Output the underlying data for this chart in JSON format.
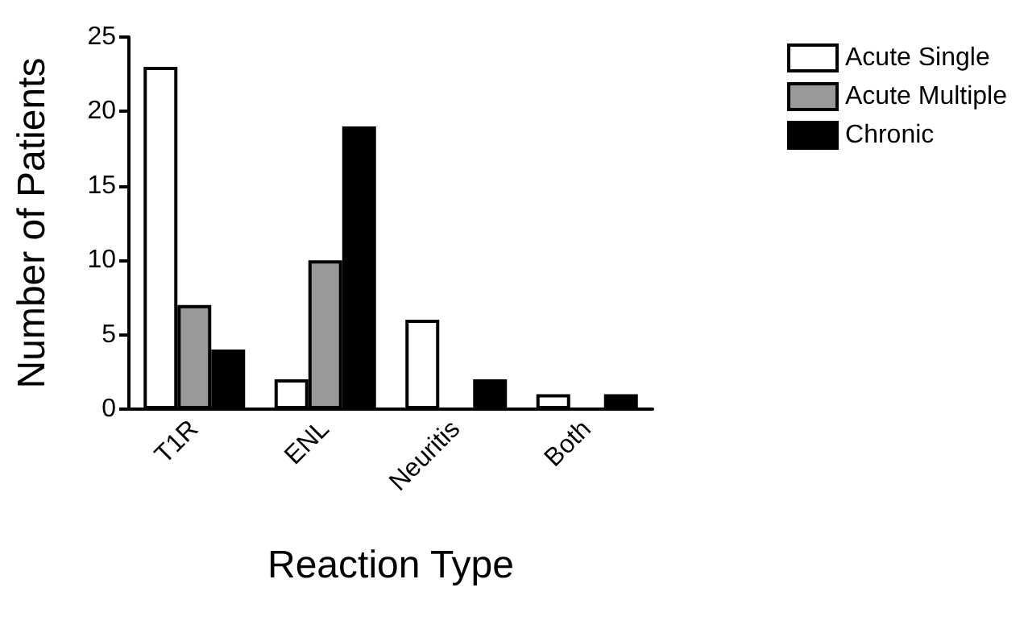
{
  "chart_data": {
    "type": "bar",
    "xlabel": "Reaction Type",
    "ylabel": "Number of Patients",
    "categories": [
      "T1R",
      "ENL",
      "Neuritis",
      "Both"
    ],
    "series": [
      {
        "name": "Acute Single",
        "color": "#ffffff",
        "values": [
          23,
          2,
          6,
          1
        ]
      },
      {
        "name": "Acute Multiple",
        "color": "#999999",
        "values": [
          7,
          10,
          0,
          0
        ]
      },
      {
        "name": "Chronic",
        "color": "#000000",
        "values": [
          4,
          19,
          2,
          1
        ]
      }
    ],
    "ylim": [
      0,
      25
    ],
    "yticks": [
      0,
      5,
      10,
      15,
      20,
      25
    ],
    "grid": false,
    "legend": "top right"
  }
}
